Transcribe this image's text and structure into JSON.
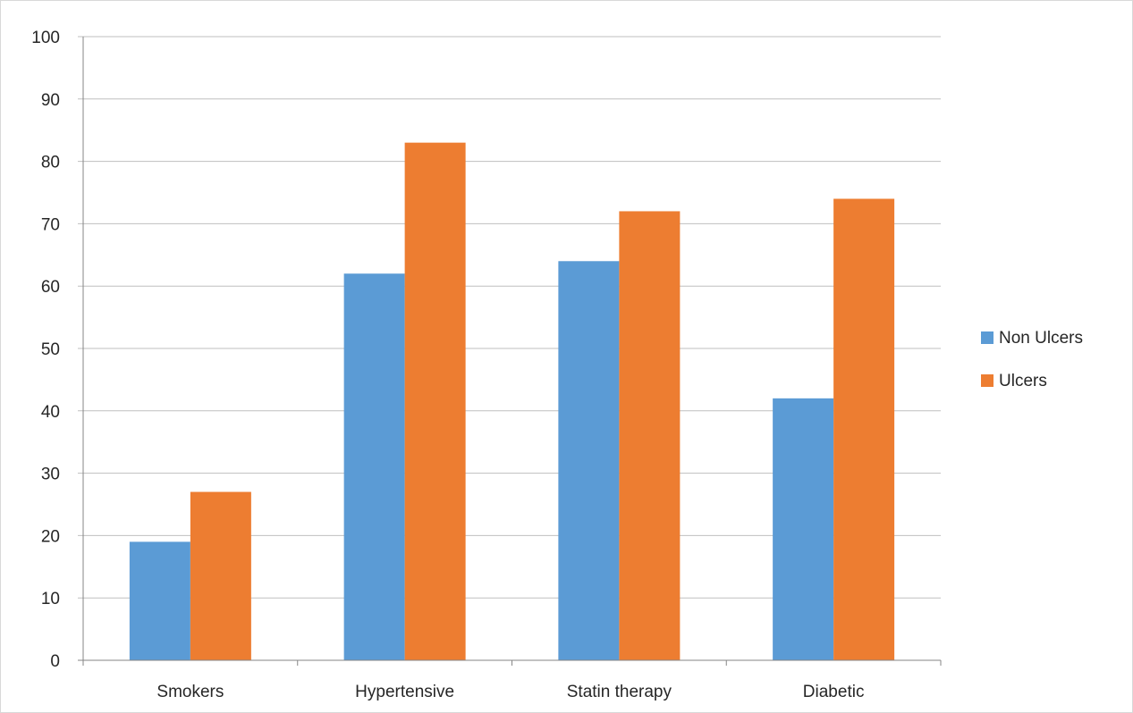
{
  "chart_data": {
    "type": "bar",
    "title": "",
    "xlabel": "",
    "ylabel": "",
    "categories": [
      "Smokers",
      "Hypertensive",
      "Statin therapy",
      "Diabetic"
    ],
    "series": [
      {
        "name": "Non Ulcers",
        "color": "#5b9bd5",
        "values": [
          19,
          62,
          64,
          42
        ]
      },
      {
        "name": "Ulcers",
        "color": "#ed7d31",
        "values": [
          27,
          83,
          72,
          74
        ]
      }
    ],
    "ylim": [
      0,
      100
    ],
    "yticks": [
      0,
      10,
      20,
      30,
      40,
      50,
      60,
      70,
      80,
      90,
      100
    ],
    "grid": true,
    "legend_position": "right"
  }
}
